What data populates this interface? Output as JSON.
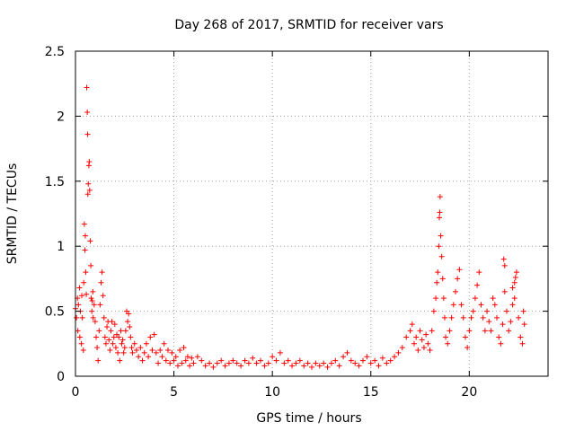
{
  "chart_data": {
    "type": "scatter",
    "title": "Day 268 of 2017, SRMTID for receiver vars",
    "xlabel": "GPS time / hours",
    "ylabel": "SRMTID / TECUs",
    "xlim": [
      0,
      24
    ],
    "ylim": [
      0,
      2.5
    ],
    "xticks": [
      0,
      5,
      10,
      15,
      20
    ],
    "xtick_labels": [
      "0",
      "5",
      "10",
      "15",
      "20"
    ],
    "yticks": [
      0,
      0.5,
      1,
      1.5,
      2,
      2.5
    ],
    "ytick_labels": [
      "0",
      "0.5",
      "1",
      "1.5",
      "2",
      "2.5"
    ],
    "grid": true,
    "marker": "+",
    "color": "#ff0000",
    "series": [
      {
        "name": "SRMTID",
        "points": [
          [
            0.0,
            0.52
          ],
          [
            0.05,
            0.45
          ],
          [
            0.1,
            0.6
          ],
          [
            0.12,
            0.35
          ],
          [
            0.15,
            0.55
          ],
          [
            0.2,
            0.68
          ],
          [
            0.22,
            0.3
          ],
          [
            0.25,
            0.5
          ],
          [
            0.3,
            0.25
          ],
          [
            0.32,
            0.62
          ],
          [
            0.35,
            0.45
          ],
          [
            0.4,
            0.2
          ],
          [
            0.42,
            0.72
          ],
          [
            0.45,
            1.17
          ],
          [
            0.48,
            0.97
          ],
          [
            0.5,
            1.08
          ],
          [
            0.52,
            0.8
          ],
          [
            0.55,
            0.63
          ],
          [
            0.57,
            2.22
          ],
          [
            0.6,
            2.03
          ],
          [
            0.62,
            1.86
          ],
          [
            0.63,
            1.4
          ],
          [
            0.65,
            1.48
          ],
          [
            0.68,
            1.62
          ],
          [
            0.7,
            1.65
          ],
          [
            0.72,
            1.43
          ],
          [
            0.75,
            1.04
          ],
          [
            0.78,
            0.85
          ],
          [
            0.8,
            0.6
          ],
          [
            0.83,
            0.5
          ],
          [
            0.85,
            0.58
          ],
          [
            0.88,
            0.65
          ],
          [
            0.9,
            0.45
          ],
          [
            0.95,
            0.55
          ],
          [
            1.0,
            0.42
          ],
          [
            1.05,
            0.3
          ],
          [
            1.1,
            0.22
          ],
          [
            1.15,
            0.12
          ],
          [
            1.2,
            0.35
          ],
          [
            1.25,
            0.55
          ],
          [
            1.3,
            0.72
          ],
          [
            1.35,
            0.8
          ],
          [
            1.4,
            0.62
          ],
          [
            1.45,
            0.45
          ],
          [
            1.5,
            0.3
          ],
          [
            1.55,
            0.25
          ],
          [
            1.6,
            0.38
          ],
          [
            1.65,
            0.42
          ],
          [
            1.7,
            0.28
          ],
          [
            1.75,
            0.2
          ],
          [
            1.8,
            0.35
          ],
          [
            1.85,
            0.42
          ],
          [
            1.9,
            0.25
          ],
          [
            1.95,
            0.3
          ],
          [
            2.0,
            0.4
          ],
          [
            2.05,
            0.22
          ],
          [
            2.1,
            0.32
          ],
          [
            2.15,
            0.18
          ],
          [
            2.2,
            0.3
          ],
          [
            2.25,
            0.12
          ],
          [
            2.3,
            0.35
          ],
          [
            2.35,
            0.25
          ],
          [
            2.4,
            0.28
          ],
          [
            2.45,
            0.18
          ],
          [
            2.5,
            0.22
          ],
          [
            2.55,
            0.35
          ],
          [
            2.6,
            0.5
          ],
          [
            2.65,
            0.42
          ],
          [
            2.7,
            0.48
          ],
          [
            2.75,
            0.38
          ],
          [
            2.8,
            0.3
          ],
          [
            2.85,
            0.22
          ],
          [
            2.9,
            0.18
          ],
          [
            3.0,
            0.25
          ],
          [
            3.1,
            0.2
          ],
          [
            3.2,
            0.15
          ],
          [
            3.3,
            0.22
          ],
          [
            3.4,
            0.12
          ],
          [
            3.5,
            0.18
          ],
          [
            3.6,
            0.25
          ],
          [
            3.7,
            0.15
          ],
          [
            3.8,
            0.3
          ],
          [
            3.9,
            0.2
          ],
          [
            4.0,
            0.32
          ],
          [
            4.1,
            0.18
          ],
          [
            4.2,
            0.1
          ],
          [
            4.3,
            0.2
          ],
          [
            4.4,
            0.15
          ],
          [
            4.5,
            0.25
          ],
          [
            4.6,
            0.12
          ],
          [
            4.7,
            0.2
          ],
          [
            4.8,
            0.1
          ],
          [
            4.9,
            0.18
          ],
          [
            5.0,
            0.12
          ],
          [
            5.1,
            0.15
          ],
          [
            5.2,
            0.08
          ],
          [
            5.3,
            0.2
          ],
          [
            5.4,
            0.1
          ],
          [
            5.5,
            0.22
          ],
          [
            5.6,
            0.12
          ],
          [
            5.7,
            0.15
          ],
          [
            5.8,
            0.08
          ],
          [
            5.9,
            0.14
          ],
          [
            6.0,
            0.1
          ],
          [
            6.2,
            0.15
          ],
          [
            6.4,
            0.12
          ],
          [
            6.6,
            0.08
          ],
          [
            6.8,
            0.1
          ],
          [
            7.0,
            0.07
          ],
          [
            7.2,
            0.1
          ],
          [
            7.4,
            0.12
          ],
          [
            7.6,
            0.08
          ],
          [
            7.8,
            0.1
          ],
          [
            8.0,
            0.12
          ],
          [
            8.2,
            0.1
          ],
          [
            8.4,
            0.08
          ],
          [
            8.6,
            0.12
          ],
          [
            8.8,
            0.1
          ],
          [
            9.0,
            0.14
          ],
          [
            9.2,
            0.1
          ],
          [
            9.4,
            0.12
          ],
          [
            9.6,
            0.08
          ],
          [
            9.8,
            0.1
          ],
          [
            10.0,
            0.15
          ],
          [
            10.2,
            0.12
          ],
          [
            10.4,
            0.18
          ],
          [
            10.6,
            0.1
          ],
          [
            10.8,
            0.12
          ],
          [
            11.0,
            0.08
          ],
          [
            11.2,
            0.1
          ],
          [
            11.4,
            0.12
          ],
          [
            11.6,
            0.08
          ],
          [
            11.8,
            0.1
          ],
          [
            12.0,
            0.07
          ],
          [
            12.2,
            0.1
          ],
          [
            12.4,
            0.08
          ],
          [
            12.6,
            0.1
          ],
          [
            12.8,
            0.07
          ],
          [
            13.0,
            0.1
          ],
          [
            13.2,
            0.12
          ],
          [
            13.4,
            0.08
          ],
          [
            13.6,
            0.15
          ],
          [
            13.8,
            0.18
          ],
          [
            14.0,
            0.12
          ],
          [
            14.2,
            0.1
          ],
          [
            14.4,
            0.08
          ],
          [
            14.6,
            0.12
          ],
          [
            14.8,
            0.15
          ],
          [
            15.0,
            0.1
          ],
          [
            15.2,
            0.12
          ],
          [
            15.4,
            0.08
          ],
          [
            15.6,
            0.14
          ],
          [
            15.8,
            0.1
          ],
          [
            16.0,
            0.12
          ],
          [
            16.2,
            0.15
          ],
          [
            16.4,
            0.18
          ],
          [
            16.6,
            0.22
          ],
          [
            16.8,
            0.3
          ],
          [
            17.0,
            0.35
          ],
          [
            17.1,
            0.4
          ],
          [
            17.2,
            0.25
          ],
          [
            17.3,
            0.3
          ],
          [
            17.4,
            0.2
          ],
          [
            17.5,
            0.35
          ],
          [
            17.6,
            0.28
          ],
          [
            17.7,
            0.22
          ],
          [
            17.8,
            0.32
          ],
          [
            17.9,
            0.25
          ],
          [
            18.0,
            0.2
          ],
          [
            18.1,
            0.35
          ],
          [
            18.2,
            0.5
          ],
          [
            18.3,
            0.6
          ],
          [
            18.35,
            0.72
          ],
          [
            18.4,
            0.8
          ],
          [
            18.45,
            1.0
          ],
          [
            18.48,
            1.22
          ],
          [
            18.5,
            1.26
          ],
          [
            18.52,
            1.38
          ],
          [
            18.55,
            1.08
          ],
          [
            18.6,
            0.92
          ],
          [
            18.65,
            0.75
          ],
          [
            18.7,
            0.6
          ],
          [
            18.75,
            0.45
          ],
          [
            18.8,
            0.3
          ],
          [
            18.9,
            0.25
          ],
          [
            19.0,
            0.35
          ],
          [
            19.1,
            0.45
          ],
          [
            19.2,
            0.55
          ],
          [
            19.3,
            0.65
          ],
          [
            19.4,
            0.75
          ],
          [
            19.5,
            0.82
          ],
          [
            19.6,
            0.55
          ],
          [
            19.7,
            0.45
          ],
          [
            19.8,
            0.3
          ],
          [
            19.9,
            0.22
          ],
          [
            20.0,
            0.35
          ],
          [
            20.1,
            0.45
          ],
          [
            20.2,
            0.5
          ],
          [
            20.3,
            0.6
          ],
          [
            20.4,
            0.7
          ],
          [
            20.5,
            0.8
          ],
          [
            20.6,
            0.55
          ],
          [
            20.7,
            0.45
          ],
          [
            20.8,
            0.35
          ],
          [
            20.9,
            0.5
          ],
          [
            21.0,
            0.42
          ],
          [
            21.1,
            0.35
          ],
          [
            21.2,
            0.6
          ],
          [
            21.3,
            0.55
          ],
          [
            21.4,
            0.45
          ],
          [
            21.5,
            0.3
          ],
          [
            21.6,
            0.25
          ],
          [
            21.7,
            0.4
          ],
          [
            21.8,
            0.65
          ],
          [
            21.9,
            0.5
          ],
          [
            22.0,
            0.35
          ],
          [
            22.1,
            0.42
          ],
          [
            22.2,
            0.55
          ],
          [
            22.3,
            0.6
          ],
          [
            22.35,
            0.76
          ],
          [
            22.4,
            0.8
          ],
          [
            22.5,
            0.45
          ],
          [
            22.6,
            0.3
          ],
          [
            22.7,
            0.25
          ],
          [
            22.75,
            0.5
          ],
          [
            22.8,
            0.4
          ],
          [
            21.75,
            0.9
          ],
          [
            21.8,
            0.85
          ],
          [
            22.2,
            0.68
          ],
          [
            22.3,
            0.72
          ]
        ]
      }
    ]
  }
}
